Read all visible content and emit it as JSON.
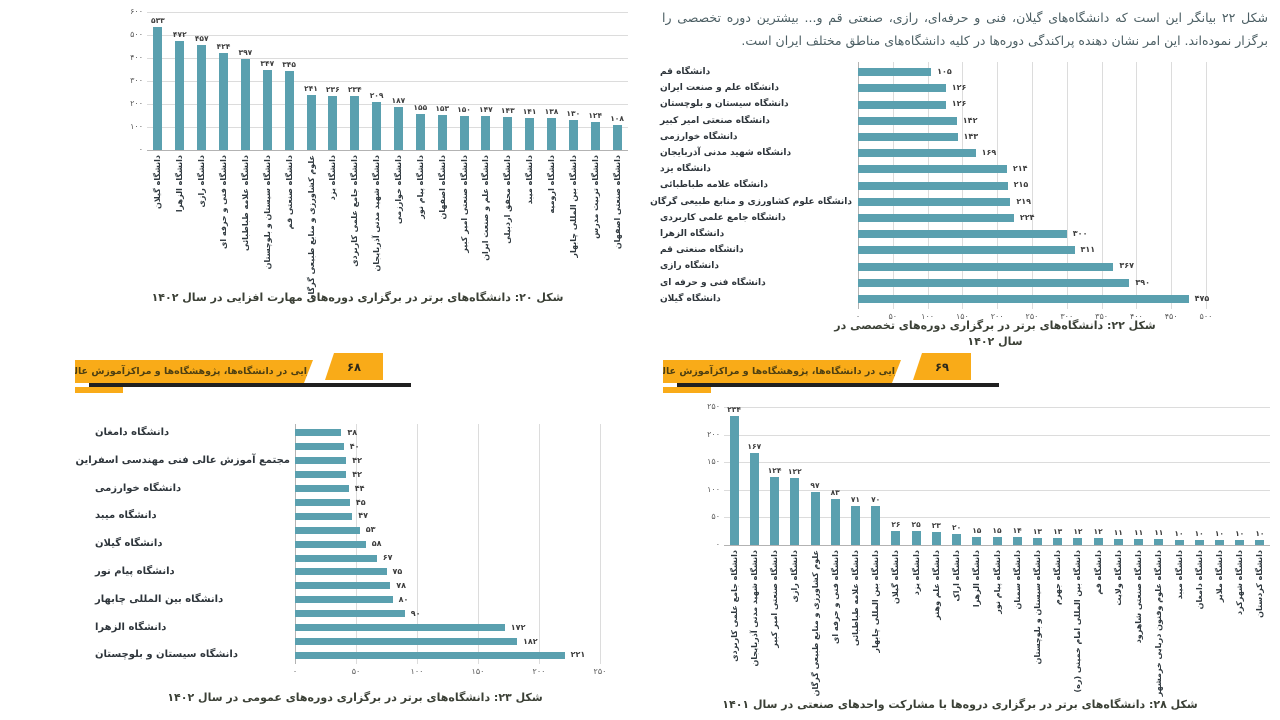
{
  "page": {
    "intro_text": "شکل ۲۲ بیانگر این است که دانشگاه‌های گیلان، فنی و حرفه‌ای، رازی، صنعتی قم و... بیشترین دوره تخصصی را برگزار نموده‌اند. این امر نشان دهنده پراکندگی دوره‌ها در کلیه دانشگاه‌های مناطق مختلف ایران است."
  },
  "banner": {
    "label": "مهارت‌افزایی در دانشگاه‌ها، پژوهشگاه‌ها و مراکزآموزش عالی کشور",
    "left_page_number": "۶۸",
    "right_page_number": "۶۹"
  },
  "colors": {
    "bar": "#5aa0af",
    "banner": "#f9ab18",
    "banner_shadow": "#202020",
    "grid": "#dcdcdc"
  },
  "chart_data": [
    {
      "figure": "شکل ۲۰",
      "type": "bar",
      "orientation": "vertical",
      "caption": "شکل ۲۰: دانشگاه‌های برتر در برگزاری دوره‌های مهارت افزایی در سال ۱۴۰۲",
      "categories": [
        "دانشگاه گیلان",
        "دانشگاه الزهرا",
        "دانشگاه رازی",
        "دانشگاه فنی و حرفه ای",
        "دانشگاه علامه طباطبائی",
        "دانشگاه سیستان و بلوچستان",
        "دانشگاه صنعتی قم",
        "علوم کشاورزی و منابع طبیعی گرگان",
        "دانشگاه یزد",
        "دانشگاه جامع علمی کاربردی",
        "دانشگاه شهید مدنی آذربایجان",
        "دانشگاه خوارزمی",
        "دانشگاه پیام نور",
        "دانشگاه اصفهان",
        "دانشگاه صنعتی امیر کبیر",
        "دانشگاه علم و صنعت ایران",
        "دانشگاه محقق اردبیلی",
        "دانشگاه میبد",
        "دانشگاه ارومیه",
        "دانشگاه بین المللی چابهار",
        "دانشگاه تربیت مدرس",
        "دانشگاه صنعتی اصفهان"
      ],
      "values": [
        533,
        472,
        457,
        424,
        397,
        347,
        345,
        241,
        236,
        234,
        209,
        187,
        155,
        153,
        150,
        147,
        143,
        141,
        138,
        130,
        124,
        108
      ],
      "ylim": [
        0,
        600
      ],
      "ytick_step": 100,
      "grid": true,
      "legend": false
    },
    {
      "figure": "شکل ۲۲",
      "type": "bar",
      "orientation": "horizontal",
      "caption": "شکل ۲۲:  دانشگاه‌های برتر در برگزاری دوره‌های  تخصصی در سال ۱۴۰۲",
      "categories": [
        "دانشگاه قم",
        "دانشگاه علم و صنعت ایران",
        "دانشگاه سیستان و بلوچستان",
        "دانشگاه صنعتی امیر کبیر",
        "دانشگاه خوارزمی",
        "دانشگاه شهید مدنی آذربایجان",
        "دانشگاه یزد",
        "دانشگاه علامه طباطبائی",
        "دانشگاه علوم کشاورزی و منابع طبیعی گرگان",
        "دانشگاه جامع علمی کاربردی",
        "دانشگاه الزهرا",
        "دانشگاه صنعتی قم",
        "دانشگاه رازی",
        "دانشگاه فنی و حرفه ای",
        "دانشگاه گیلان"
      ],
      "values": [
        105,
        126,
        126,
        142,
        143,
        169,
        214,
        215,
        219,
        224,
        300,
        311,
        367,
        390,
        475
      ],
      "xlim": [
        0,
        500
      ],
      "xtick_step": 50,
      "grid": true,
      "legend": false
    },
    {
      "figure": "شکل ۲۳",
      "type": "bar",
      "orientation": "horizontal",
      "caption": "شکل ۲۳: دانشگاه‌های برتر در برگزاری دوره‌های عمومی در سال ۱۴۰۲",
      "categories": [
        "دانشگاه دامغان",
        "",
        "مجتمع آموزش عالی فنی مهندسی اسفراین",
        "",
        "دانشگاه خوارزمی",
        "",
        "دانشگاه میبد",
        "",
        "دانشگاه گیلان",
        "",
        "دانشگاه پیام نور",
        "",
        "دانشگاه بین المللی چابهار",
        "",
        "دانشگاه الزهرا",
        "",
        "دانشگاه سیستان و بلوچستان"
      ],
      "values": [
        38,
        40,
        42,
        42,
        44,
        45,
        47,
        53,
        58,
        67,
        75,
        78,
        80,
        90,
        172,
        182,
        221
      ],
      "xlim": [
        0,
        250
      ],
      "xtick_step": 50,
      "grid": true,
      "legend": false
    },
    {
      "figure": "شکل ۲۸",
      "type": "bar",
      "orientation": "vertical",
      "caption": "شکل ۲۸: دانشگاه‌های برتر در برگزاری دروه‌ها با مشارکت واحدهای صنعتی در سال ۱۴۰۱",
      "categories": [
        "دانشگاه جامع علمی کاربردی",
        "دانشگاه شهید مدنی آذربایجان",
        "دانشگاه صنعتی امیر کبیر",
        "دانشگاه رازی",
        "علوم کشاورزی و منابع طبیعی گرگان",
        "دانشگاه فنی و حرفه ای",
        "دانشگاه علامه طباطبائی",
        "دانشگاه بین المللی چابهار",
        "دانشگاه گیلان",
        "دانشگاه یزد",
        "دانشگاه علم وهنر",
        "دانشگاه اراک",
        "دانشگاه الزهرا",
        "دانشگاه پیام نور",
        "دانشگاه سمنان",
        "دانشگاه سیستان و بلوچستان",
        "دانشگاه جهرم",
        "دانشگاه بین المللی امام خمینی (ره)",
        "دانشگاه قم",
        "دانشگاه ولایت",
        "دانشگاه صنعتی شاهرود",
        "دانشگاه علوم وفنون دریایی خرمشهر",
        "دانشگاه میبد",
        "دانشگاه دامغان",
        "دانشگاه ملایر",
        "دانشگاه شهرکرد",
        "دانشگاه کردستان"
      ],
      "values": [
        234,
        167,
        124,
        122,
        97,
        83,
        71,
        70,
        26,
        25,
        23,
        20,
        15,
        15,
        14,
        13,
        13,
        12,
        12,
        11,
        11,
        11,
        10,
        10,
        10,
        10,
        10
      ],
      "ylim": [
        0,
        250
      ],
      "ytick_step": 50,
      "grid": true,
      "legend": false
    }
  ]
}
